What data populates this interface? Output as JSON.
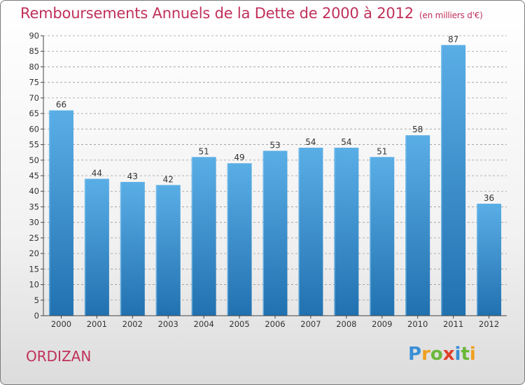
{
  "header": {
    "title": "Remboursements Annuels de la Dette de 2000 à 2012",
    "unit": "(en milliers d'€)"
  },
  "footer": {
    "commune": "ORDIZAN",
    "logo_text": "Proxiti"
  },
  "colors": {
    "title": "#c0305a",
    "bar_light": "#5aaee6",
    "bar_dark": "#2171b0",
    "grid": "#9a9a9a",
    "axis": "#444444"
  },
  "chart_data": {
    "type": "bar",
    "title": "Remboursements Annuels de la Dette de 2000 à 2012",
    "xlabel": "",
    "ylabel": "",
    "categories": [
      "2000",
      "2001",
      "2002",
      "2003",
      "2004",
      "2005",
      "2006",
      "2007",
      "2008",
      "2009",
      "2010",
      "2011",
      "2012"
    ],
    "values": [
      66,
      44,
      43,
      42,
      51,
      49,
      53,
      54,
      54,
      51,
      58,
      87,
      36
    ],
    "ylim": [
      0,
      90
    ],
    "yticks": [
      0,
      5,
      10,
      15,
      20,
      25,
      30,
      35,
      40,
      45,
      50,
      55,
      60,
      65,
      70,
      75,
      80,
      85,
      90
    ],
    "grid": true,
    "data_labels": true
  }
}
